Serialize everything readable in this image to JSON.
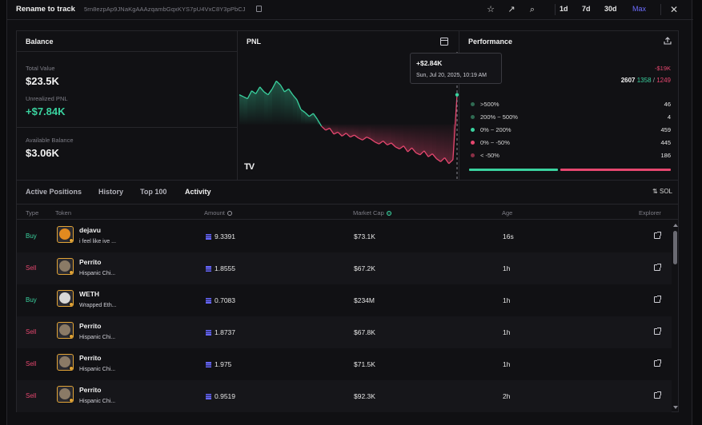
{
  "header": {
    "title": "Rename to track",
    "address": "5rn8ezpAp9JNaKgAAAzqambGqxKYS7pU4VxC8Y3pPbCJ",
    "timeframes": [
      "1d",
      "7d",
      "30d",
      "Max"
    ],
    "active_timeframe": "Max"
  },
  "balance": {
    "title": "Balance",
    "total_value_label": "Total Value",
    "total_value": "$23.5K",
    "unrealized_label": "Unrealized PNL",
    "unrealized_value": "+$7.84K",
    "available_label": "Available Balance",
    "available_value": "$3.06K"
  },
  "pnl": {
    "title": "PNL",
    "tooltip_value": "+$2.84K",
    "tooltip_date": "Sun, Jul 20, 2025, 10:19 AM",
    "logo": "TV",
    "colors": {
      "up": "#3ad29f",
      "down": "#e6476f"
    }
  },
  "chart_data": {
    "type": "line",
    "baseline": "cumulative PNL baseline",
    "series": [
      {
        "values": [
          30,
          28,
          26,
          34,
          31,
          38,
          33,
          30,
          36,
          44,
          40,
          33,
          36,
          30,
          25,
          15,
          12,
          8,
          11,
          5,
          -2,
          -6,
          -4,
          -10,
          -8,
          -12,
          -9,
          -13,
          -11,
          -14,
          -16,
          -13,
          -15,
          -18,
          -20,
          -17,
          -21,
          -19,
          -23,
          -25,
          -22,
          -28,
          -24,
          -29,
          -31,
          -27,
          -33,
          -30,
          -35,
          -38,
          -34,
          -40,
          -36,
          30
        ]
      }
    ]
  },
  "performance": {
    "title": "Performance",
    "realized": "-$19K",
    "total_trades": "2607",
    "wins": "1358",
    "losses": "1249",
    "buckets": [
      {
        "label": ">500%",
        "count": "46",
        "color": "#2f6b52"
      },
      {
        "label": "200% ~ 500%",
        "count": "4",
        "color": "#2f6b52"
      },
      {
        "label": "0% ~ 200%",
        "count": "459",
        "color": "#3ad29f"
      },
      {
        "label": "0% ~ -50%",
        "count": "445",
        "color": "#e6476f"
      },
      {
        "label": "< -50%",
        "count": "186",
        "color": "#8a2f45"
      }
    ],
    "win_ratio": 0.45
  },
  "tabs": {
    "items": [
      "Active Positions",
      "History",
      "Top 100",
      "Activity"
    ],
    "active": "Activity",
    "currency_toggle": "SOL"
  },
  "table": {
    "headers": {
      "type": "Type",
      "token": "Token",
      "amount": "Amount",
      "market_cap": "Market Cap",
      "age": "Age",
      "explorer": "Explorer"
    },
    "rows": [
      {
        "type": "Buy",
        "name": "dejavu",
        "sub": "i feel like ive ...",
        "amount": "9.3391",
        "mc": "$73.1K",
        "age": "16s",
        "avatar": "#e28a1f"
      },
      {
        "type": "Sell",
        "name": "Perrito",
        "sub": "Hispanic Chi...",
        "amount": "1.8555",
        "mc": "$67.2K",
        "age": "1h",
        "avatar": "#8a7a66"
      },
      {
        "type": "Buy",
        "name": "WETH",
        "sub": "Wrapped Eth...",
        "amount": "0.7083",
        "mc": "$234M",
        "age": "1h",
        "avatar": "#d8d8d8"
      },
      {
        "type": "Sell",
        "name": "Perrito",
        "sub": "Hispanic Chi...",
        "amount": "1.8737",
        "mc": "$67.8K",
        "age": "1h",
        "avatar": "#8a7a66"
      },
      {
        "type": "Sell",
        "name": "Perrito",
        "sub": "Hispanic Chi...",
        "amount": "1.975",
        "mc": "$71.5K",
        "age": "1h",
        "avatar": "#8a7a66"
      },
      {
        "type": "Sell",
        "name": "Perrito",
        "sub": "Hispanic Chi...",
        "amount": "0.9519",
        "mc": "$92.3K",
        "age": "2h",
        "avatar": "#8a7a66"
      }
    ]
  }
}
